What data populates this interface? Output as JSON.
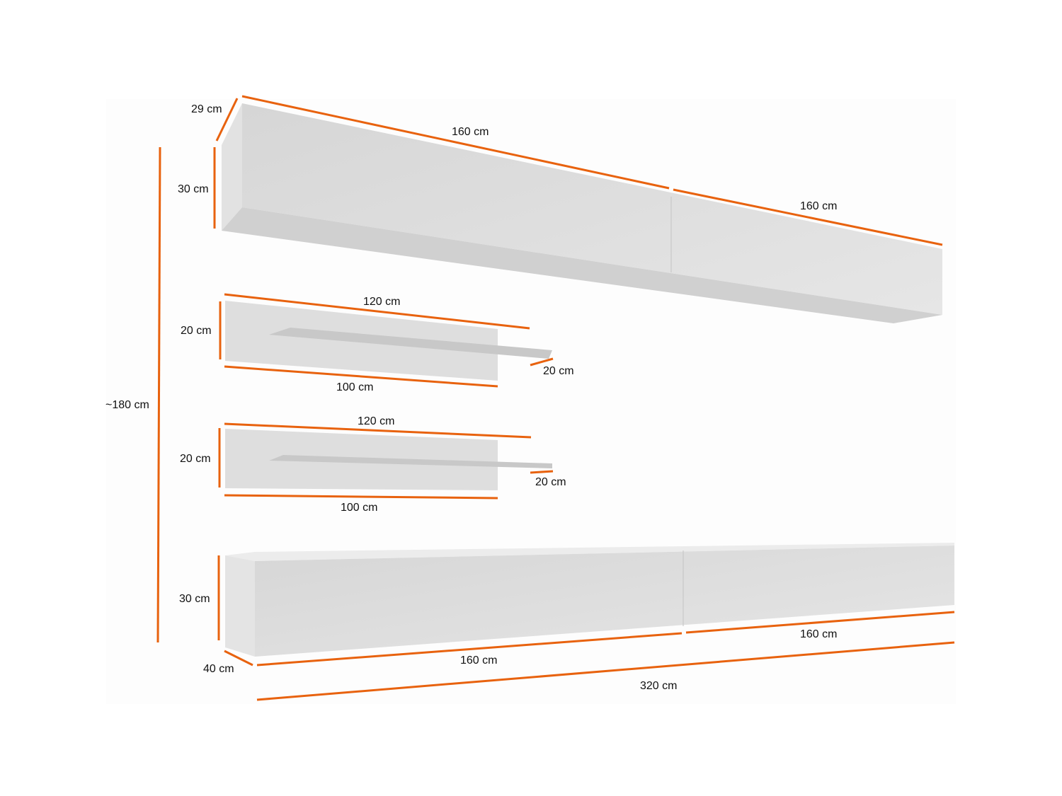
{
  "colors": {
    "dimension_line": "#e8620e",
    "furniture": "#dcdcdc"
  },
  "labels": {
    "top_depth": "29 cm",
    "top_width_left": "160 cm",
    "top_height": "30 cm",
    "top_width_right": "160 cm",
    "shelf1_width": "120 cm",
    "shelf1_height": "20 cm",
    "shelf1_depth": "20 cm",
    "shelf1_panel_width": "100 cm",
    "total_height": "~180 cm",
    "shelf2_width": "120 cm",
    "shelf2_height": "20 cm",
    "shelf2_depth": "20 cm",
    "shelf2_panel_width": "100 cm",
    "bottom_height": "30 cm",
    "bottom_width_right": "160 cm",
    "bottom_depth": "40 cm",
    "bottom_width_left": "160 cm",
    "bottom_total_width": "320 cm"
  }
}
